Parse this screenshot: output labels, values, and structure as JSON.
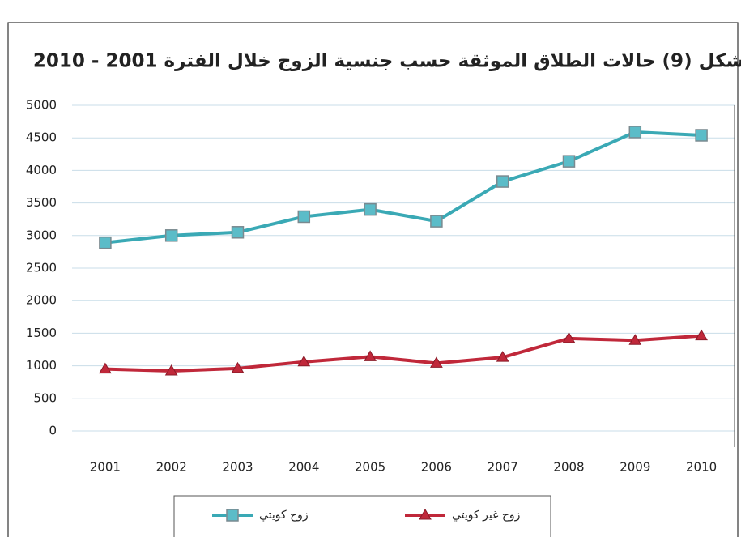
{
  "chart_data": {
    "type": "line",
    "title": "شكل (9) حالات الطلاق الموثقة حسب جنسية الزوج خلال الفترة 2001 - 2010",
    "categories": [
      "2001",
      "2002",
      "2003",
      "2004",
      "2005",
      "2006",
      "2007",
      "2008",
      "2009",
      "2010"
    ],
    "series": [
      {
        "name": "زوج كويتي",
        "color": "#3aa9b5",
        "marker": "square",
        "values": [
          2890,
          3000,
          3050,
          3290,
          3400,
          3220,
          3830,
          4140,
          4590,
          4540
        ]
      },
      {
        "name": "زوج غير كويتي",
        "color": "#c0283a",
        "marker": "triangle",
        "values": [
          950,
          920,
          960,
          1060,
          1140,
          1040,
          1130,
          1420,
          1390,
          1460
        ]
      }
    ],
    "ylim": [
      0,
      5000
    ],
    "yticks": [
      0,
      500,
      1000,
      1500,
      2000,
      2500,
      3000,
      3500,
      4000,
      4500,
      5000
    ],
    "grid": true,
    "legend": "bottom"
  }
}
